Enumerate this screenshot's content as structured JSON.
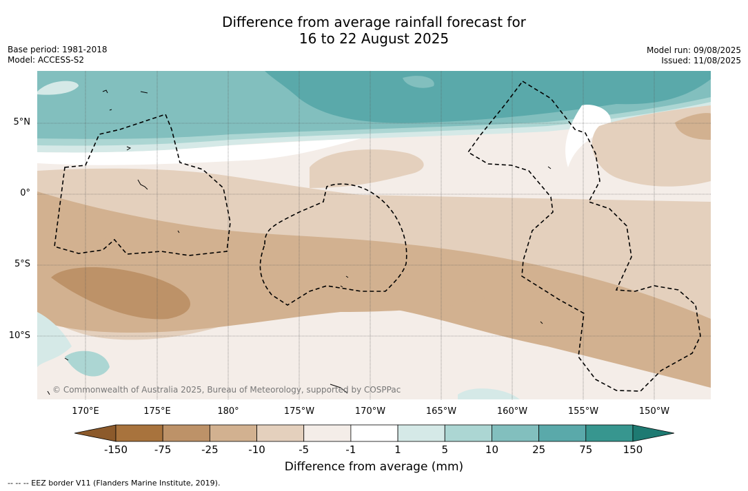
{
  "title": {
    "line1": "Difference from average rainfall forecast for",
    "line2": "16 to 22 August 2025"
  },
  "meta": {
    "base_period": "Base period: 1981-2018",
    "model": "Model: ACCESS-S2",
    "model_run": "Model run: 09/08/2025",
    "issued": "Issued: 11/08/2025"
  },
  "map": {
    "latitudes": [
      "5°N",
      "0°",
      "5°S",
      "10°S"
    ],
    "longitudes": [
      "170°E",
      "175°E",
      "180°",
      "175°W",
      "170°W",
      "165°W",
      "160°W",
      "155°W",
      "150°W"
    ],
    "copyright": "© Commonwealth of Australia 2025, Bureau of Meteorology, supported by COSPPac"
  },
  "colorbar": {
    "ticks": [
      "-150",
      "-75",
      "-25",
      "-10",
      "-5",
      "-1",
      "1",
      "5",
      "10",
      "25",
      "75",
      "150"
    ],
    "colors": [
      "#8c5a2b",
      "#a8733d",
      "#bd9268",
      "#d2b190",
      "#e4d0bd",
      "#f4ede8",
      "#ffffff",
      "#d5e9e7",
      "#acd6d3",
      "#82bfbe",
      "#5aa9aa",
      "#37968f",
      "#1e7a72"
    ],
    "title": "Difference from average (mm)"
  },
  "footnote": "--  --  -- EEZ border V11 (Flanders Marine Institute, 2019)."
}
